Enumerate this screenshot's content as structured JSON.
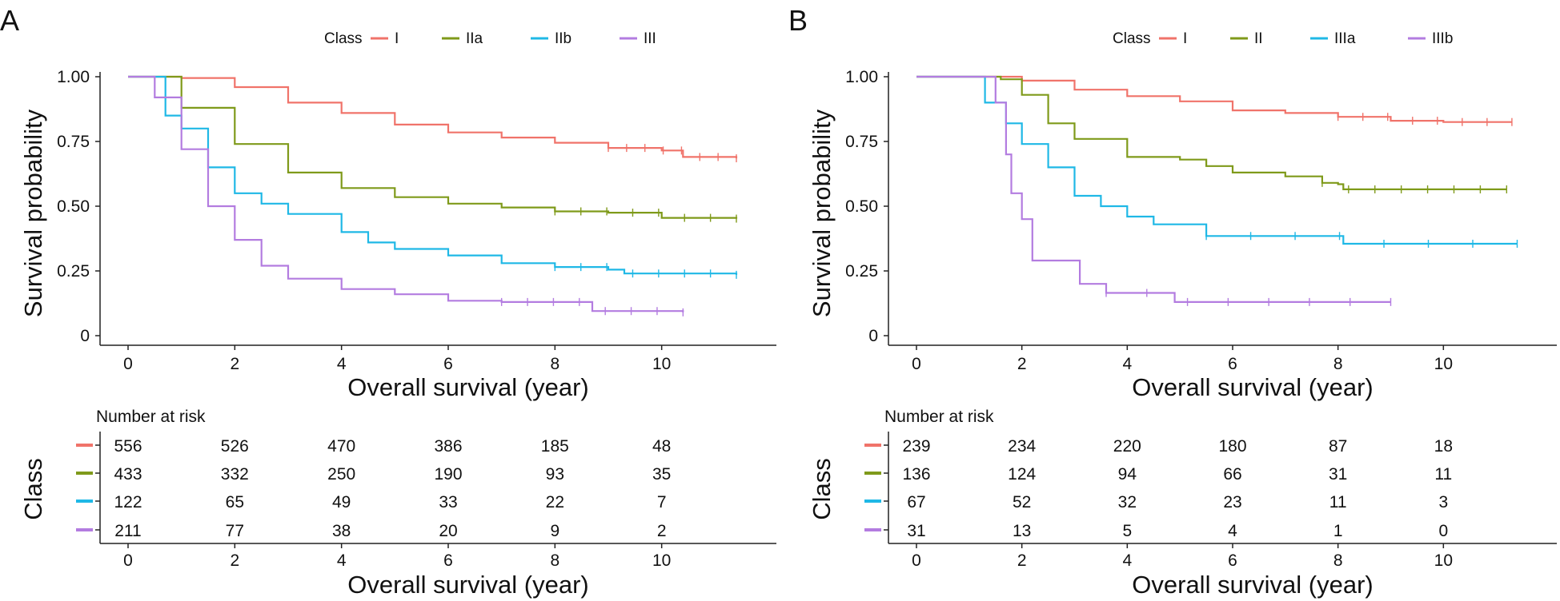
{
  "chart_data": [
    {
      "type": "line",
      "panel_label": "A",
      "title": "",
      "xlabel": "Overall survival (year)",
      "ylabel": "Survival probability",
      "xlim": [
        -0.5,
        12
      ],
      "ylim": [
        0,
        1
      ],
      "x_ticks": [
        0,
        2,
        4,
        6,
        8,
        10
      ],
      "y_ticks": [
        "0",
        "0.25",
        "0.50",
        "0.75",
        "1.00"
      ],
      "legend_title": "Class",
      "legend_position": "top",
      "series": [
        {
          "name": "I",
          "color": "#f0736a",
          "points": [
            [
              0,
              1.0
            ],
            [
              1,
              0.995
            ],
            [
              2,
              0.96
            ],
            [
              3,
              0.9
            ],
            [
              4,
              0.86
            ],
            [
              5,
              0.815
            ],
            [
              6,
              0.785
            ],
            [
              7,
              0.765
            ],
            [
              8,
              0.745
            ],
            [
              9,
              0.725
            ],
            [
              10,
              0.715
            ],
            [
              10.4,
              0.69
            ],
            [
              11.4,
              0.685
            ]
          ]
        },
        {
          "name": "IIa",
          "color": "#7f9a1a",
          "points": [
            [
              0,
              1.0
            ],
            [
              1,
              0.88
            ],
            [
              2,
              0.74
            ],
            [
              3,
              0.63
            ],
            [
              4,
              0.57
            ],
            [
              5,
              0.535
            ],
            [
              6,
              0.51
            ],
            [
              7,
              0.495
            ],
            [
              8,
              0.48
            ],
            [
              9,
              0.475
            ],
            [
              10,
              0.455
            ],
            [
              11.4,
              0.452
            ]
          ]
        },
        {
          "name": "IIb",
          "color": "#1fb8e6",
          "points": [
            [
              0,
              1.0
            ],
            [
              0.7,
              0.85
            ],
            [
              1,
              0.8
            ],
            [
              1.5,
              0.65
            ],
            [
              2,
              0.55
            ],
            [
              2.5,
              0.51
            ],
            [
              3,
              0.47
            ],
            [
              4,
              0.4
            ],
            [
              4.5,
              0.36
            ],
            [
              5,
              0.335
            ],
            [
              6,
              0.31
            ],
            [
              7,
              0.28
            ],
            [
              8,
              0.265
            ],
            [
              9,
              0.255
            ],
            [
              9.3,
              0.24
            ],
            [
              11.4,
              0.235
            ]
          ]
        },
        {
          "name": "III",
          "color": "#b37ce0",
          "points": [
            [
              0,
              1.0
            ],
            [
              0.5,
              0.92
            ],
            [
              1,
              0.72
            ],
            [
              1.5,
              0.5
            ],
            [
              2,
              0.37
            ],
            [
              2.5,
              0.27
            ],
            [
              3,
              0.22
            ],
            [
              4,
              0.18
            ],
            [
              5,
              0.16
            ],
            [
              6,
              0.135
            ],
            [
              7,
              0.13
            ],
            [
              8.5,
              0.13
            ],
            [
              8.7,
              0.095
            ],
            [
              10.4,
              0.09
            ]
          ]
        }
      ],
      "risk_table": {
        "title": "Number at risk",
        "ylabel": "Class",
        "xlabel": "Overall survival (year)",
        "rows": [
          {
            "name": "I",
            "values": [
              "556",
              "526",
              "470",
              "386",
              "185",
              "48"
            ]
          },
          {
            "name": "IIa",
            "values": [
              "433",
              "332",
              "250",
              "190",
              "93",
              "35"
            ]
          },
          {
            "name": "IIb",
            "values": [
              "122",
              "65",
              "49",
              "33",
              "22",
              "7"
            ]
          },
          {
            "name": "III",
            "values": [
              "211",
              "77",
              "38",
              "20",
              "9",
              "2"
            ]
          }
        ]
      }
    },
    {
      "type": "line",
      "panel_label": "B",
      "title": "",
      "xlabel": "Overall survival (year)",
      "ylabel": "Survival probability",
      "xlim": [
        -0.5,
        12
      ],
      "ylim": [
        0,
        1
      ],
      "x_ticks": [
        0,
        2,
        4,
        6,
        8,
        10
      ],
      "y_ticks": [
        "0",
        "0.25",
        "0.50",
        "0.75",
        "1.00"
      ],
      "legend_title": "Class",
      "legend_position": "top",
      "series": [
        {
          "name": "I",
          "color": "#f0736a",
          "points": [
            [
              0,
              1.0
            ],
            [
              1.2,
              1.0
            ],
            [
              2,
              0.985
            ],
            [
              3,
              0.95
            ],
            [
              4,
              0.925
            ],
            [
              5,
              0.905
            ],
            [
              6,
              0.87
            ],
            [
              7,
              0.86
            ],
            [
              8,
              0.845
            ],
            [
              9,
              0.83
            ],
            [
              10,
              0.825
            ],
            [
              11.3,
              0.825
            ]
          ]
        },
        {
          "name": "II",
          "color": "#7f9a1a",
          "points": [
            [
              0,
              1.0
            ],
            [
              1.2,
              1.0
            ],
            [
              1.6,
              0.99
            ],
            [
              2,
              0.93
            ],
            [
              2.5,
              0.82
            ],
            [
              3,
              0.76
            ],
            [
              4,
              0.69
            ],
            [
              5,
              0.68
            ],
            [
              5.5,
              0.655
            ],
            [
              6,
              0.63
            ],
            [
              7,
              0.615
            ],
            [
              7.7,
              0.59
            ],
            [
              8,
              0.585
            ],
            [
              8.1,
              0.565
            ],
            [
              11.2,
              0.565
            ]
          ]
        },
        {
          "name": "IIIa",
          "color": "#1fb8e6",
          "points": [
            [
              0,
              1.0
            ],
            [
              1.1,
              1.0
            ],
            [
              1.3,
              0.9
            ],
            [
              1.7,
              0.82
            ],
            [
              2,
              0.74
            ],
            [
              2.5,
              0.65
            ],
            [
              3,
              0.54
            ],
            [
              3.5,
              0.5
            ],
            [
              4,
              0.46
            ],
            [
              4.5,
              0.43
            ],
            [
              5,
              0.43
            ],
            [
              5.5,
              0.385
            ],
            [
              8,
              0.385
            ],
            [
              8.1,
              0.355
            ],
            [
              11.4,
              0.355
            ]
          ]
        },
        {
          "name": "IIIb",
          "color": "#b37ce0",
          "points": [
            [
              0,
              1.0
            ],
            [
              1.1,
              1.0
            ],
            [
              1.5,
              0.9
            ],
            [
              1.7,
              0.7
            ],
            [
              1.8,
              0.55
            ],
            [
              2,
              0.45
            ],
            [
              2.2,
              0.29
            ],
            [
              3,
              0.29
            ],
            [
              3.1,
              0.2
            ],
            [
              3.5,
              0.2
            ],
            [
              3.6,
              0.165
            ],
            [
              4.8,
              0.165
            ],
            [
              4.9,
              0.13
            ],
            [
              9,
              0.13
            ]
          ]
        }
      ],
      "risk_table": {
        "title": "Number at risk",
        "ylabel": "Class",
        "xlabel": "Overall survival (year)",
        "rows": [
          {
            "name": "I",
            "values": [
              "239",
              "234",
              "220",
              "180",
              "87",
              "18"
            ]
          },
          {
            "name": "II",
            "values": [
              "136",
              "124",
              "94",
              "66",
              "31",
              "11"
            ]
          },
          {
            "name": "IIIa",
            "values": [
              "67",
              "52",
              "32",
              "23",
              "11",
              "3"
            ]
          },
          {
            "name": "IIIb",
            "values": [
              "31",
              "13",
              "5",
              "4",
              "1",
              "0"
            ]
          }
        ]
      }
    }
  ]
}
